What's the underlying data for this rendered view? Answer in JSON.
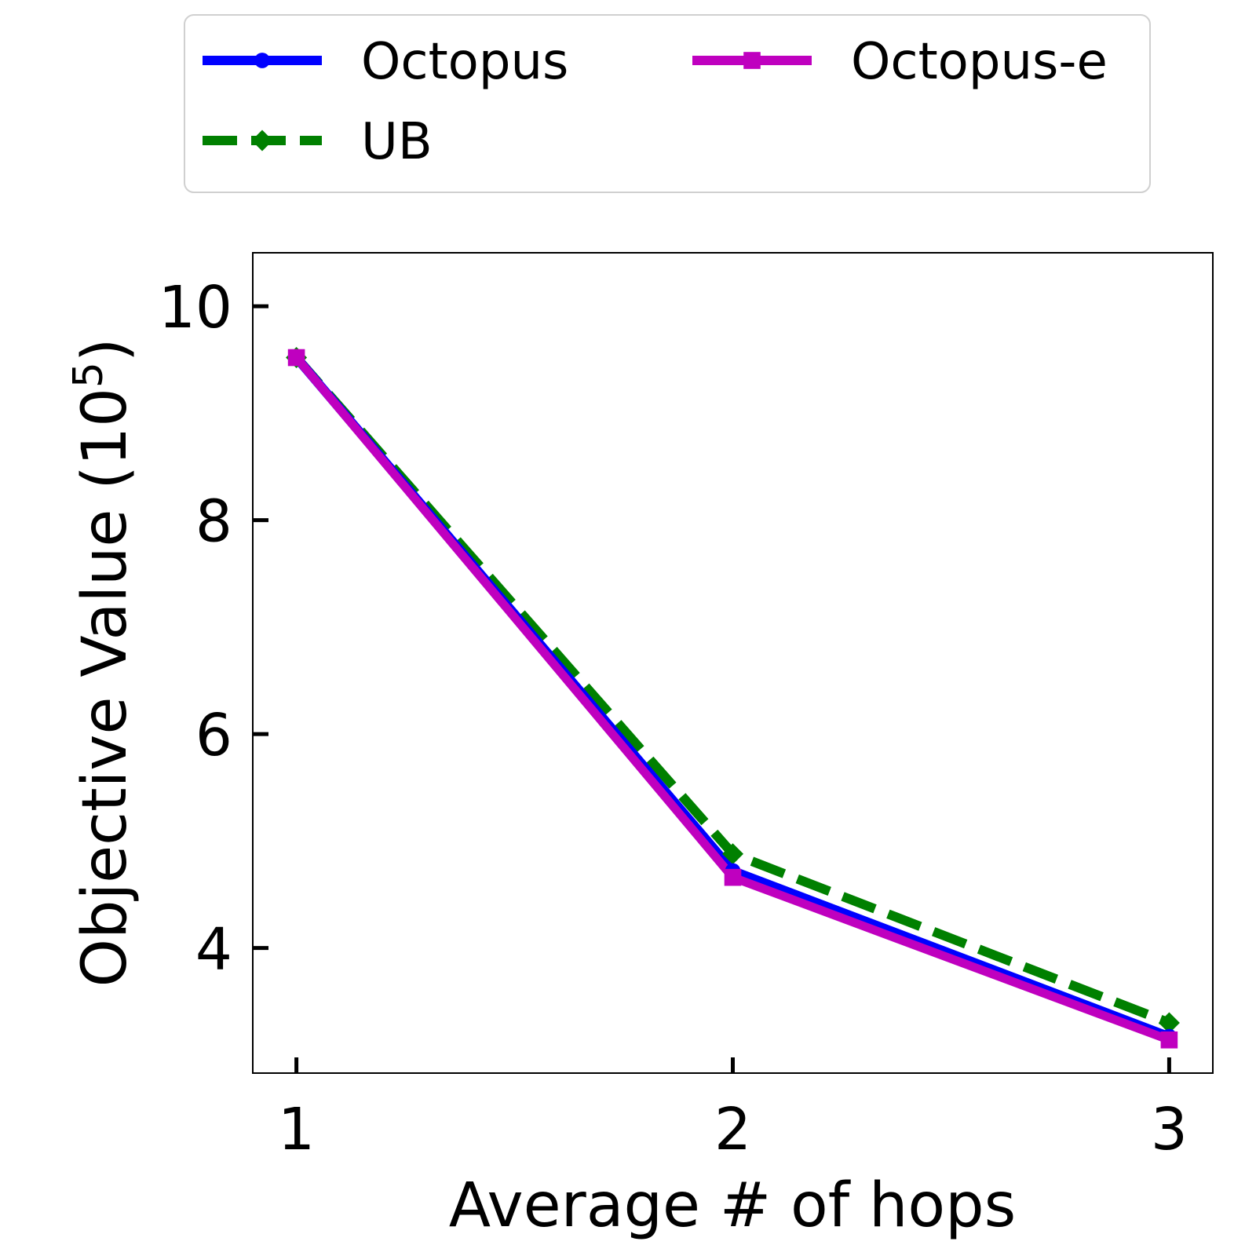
{
  "chart_data": {
    "type": "line",
    "xlabel": "Average # of hops",
    "ylabel": "Objective Value (10",
    "ylabel_superscript": "5",
    "ylabel_suffix": ")",
    "x": [
      1,
      2,
      3
    ],
    "x_ticks": [
      "1",
      "2",
      "3"
    ],
    "y_ticks": [
      "4",
      "6",
      "8",
      "10"
    ],
    "y_tick_values": [
      4,
      6,
      8,
      10
    ],
    "xlim": [
      0.9,
      3.1
    ],
    "ylim": [
      2.83,
      10.5
    ],
    "grid": false,
    "legend_position": "top, outside plot",
    "series": [
      {
        "name": "Octopus",
        "values": [
          9.52,
          4.72,
          3.17
        ],
        "color": "#0000ff",
        "linestyle": "solid",
        "marker": "circle"
      },
      {
        "name": "UB",
        "values": [
          9.52,
          4.88,
          3.3
        ],
        "color": "#008000",
        "linestyle": "dashed",
        "marker": "diamond"
      },
      {
        "name": "Octopus-e",
        "values": [
          9.52,
          4.66,
          3.14
        ],
        "color": "#bf00bf",
        "linestyle": "solid",
        "marker": "square"
      }
    ]
  }
}
